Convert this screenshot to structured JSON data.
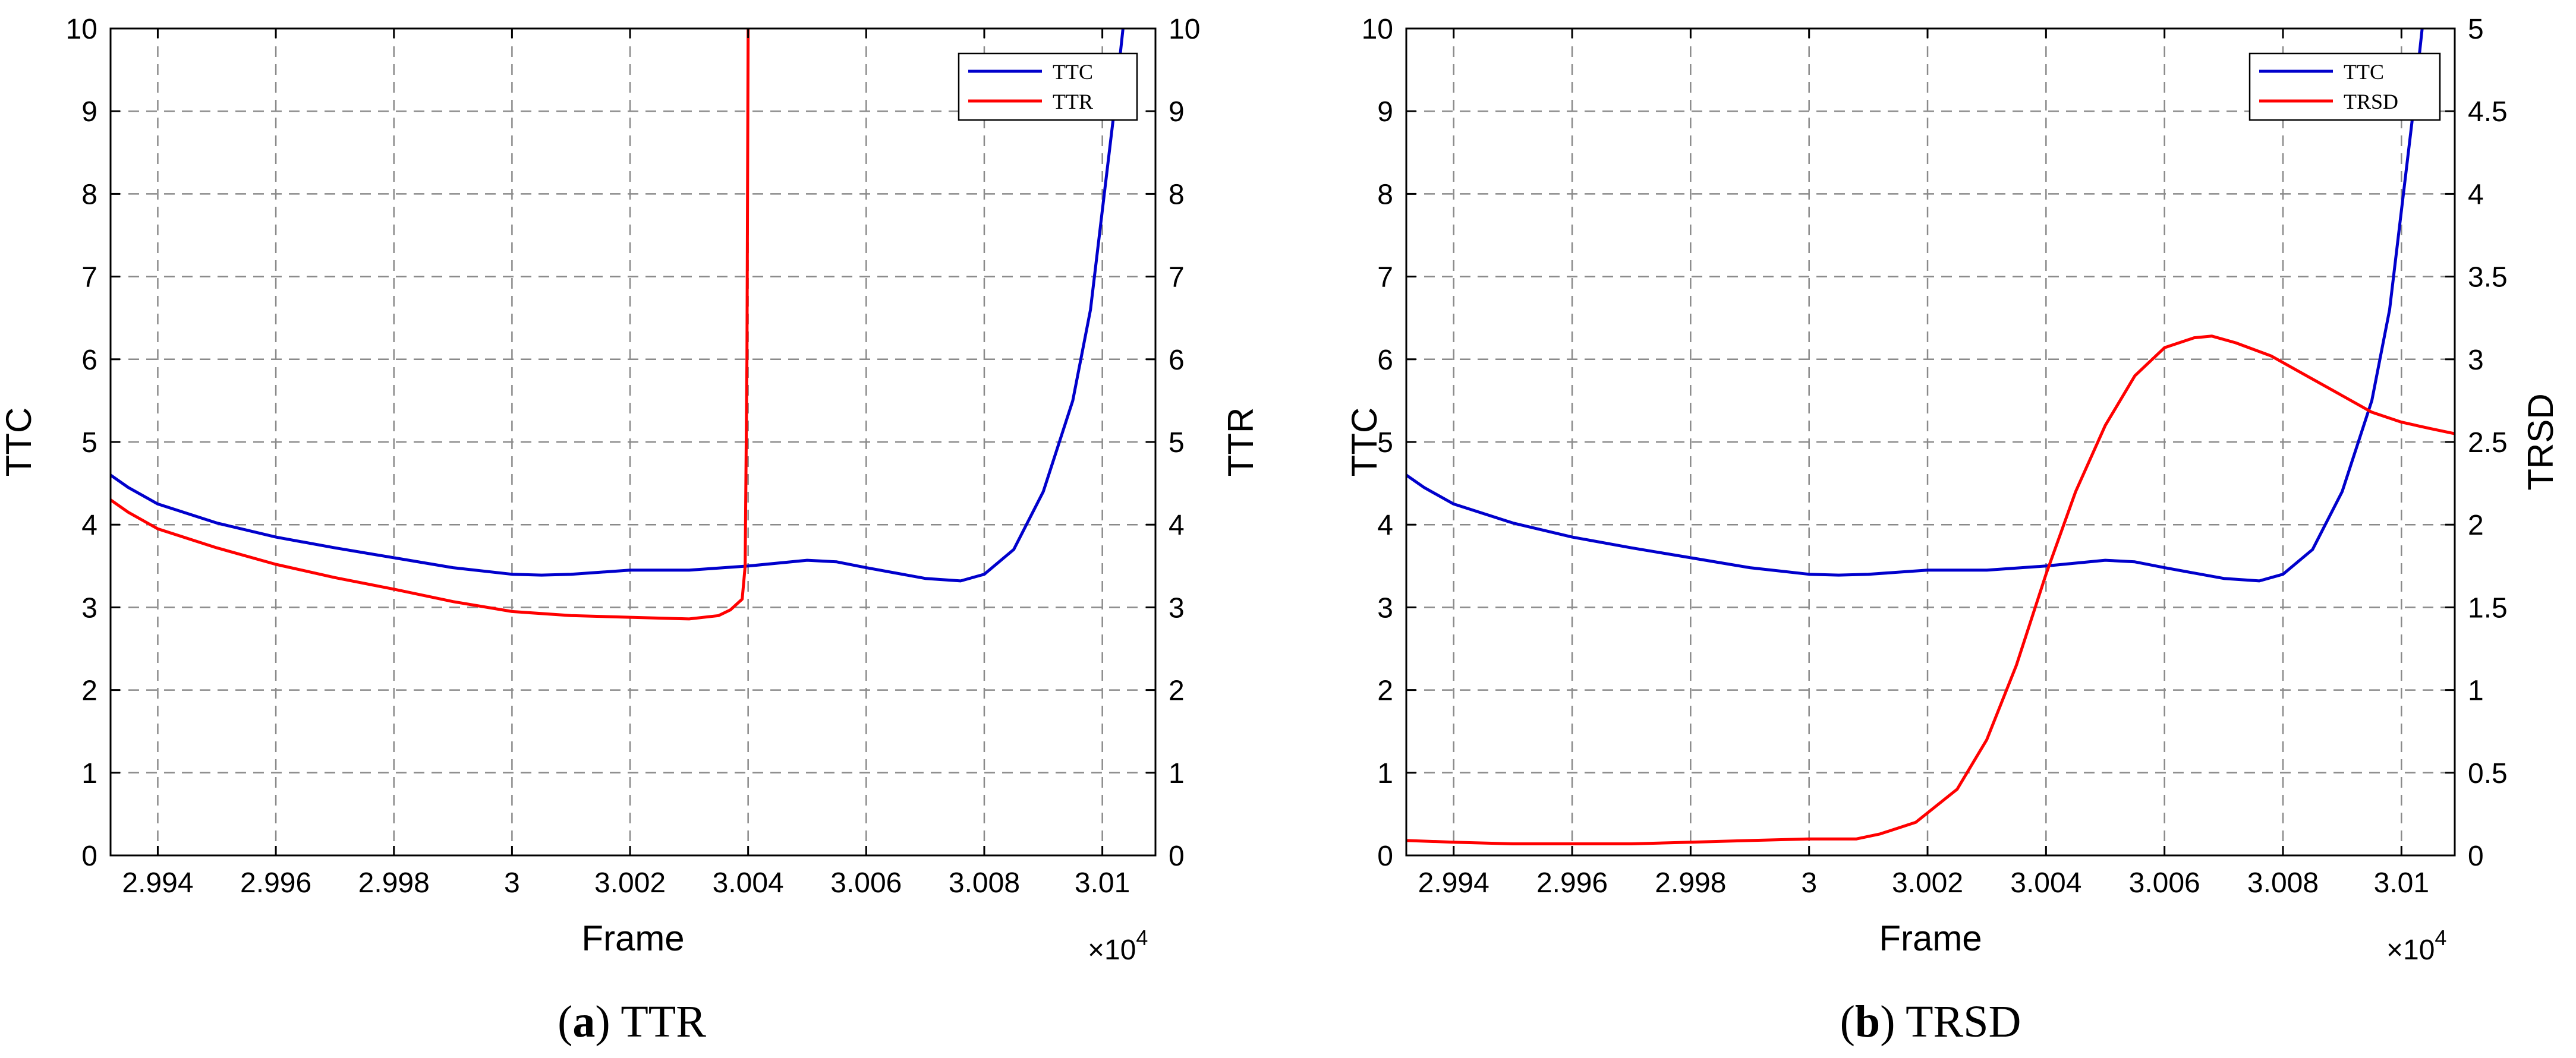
{
  "chart_data": [
    {
      "id": "a",
      "type": "line",
      "caption": {
        "letter": "a",
        "text": "TTR"
      },
      "xlabel": "Frame",
      "x_exponent_label": "×10",
      "x_exponent_power": "4",
      "xlim": [
        2.9932,
        3.0109
      ],
      "xticks": [
        2.994,
        2.996,
        2.998,
        3.0,
        3.002,
        3.004,
        3.006,
        3.008,
        3.01
      ],
      "xtick_labels": [
        "2.994",
        "2.996",
        "2.998",
        "3",
        "3.002",
        "3.004",
        "3.006",
        "3.008",
        "3.01"
      ],
      "ylabel_left": "TTC",
      "ylim_left": [
        0,
        10
      ],
      "yticks_left": [
        0,
        1,
        2,
        3,
        4,
        5,
        6,
        7,
        8,
        9,
        10
      ],
      "ylabel_right": "TTR",
      "ylim_right": [
        0,
        10
      ],
      "yticks_right": [
        0,
        1,
        2,
        3,
        4,
        5,
        6,
        7,
        8,
        9,
        10
      ],
      "grid": true,
      "legend_position": "top-right",
      "series": [
        {
          "name": "TTC",
          "axis": "left",
          "color": "#0000cc",
          "x": [
            2.9932,
            2.9935,
            2.994,
            2.995,
            2.996,
            2.997,
            2.998,
            2.999,
            3.0,
            3.0005,
            3.001,
            3.002,
            3.003,
            3.004,
            3.005,
            3.0055,
            3.006,
            3.007,
            3.0076,
            3.008,
            3.0085,
            3.009,
            3.0095,
            3.0098,
            3.01,
            3.0102,
            3.01035
          ],
          "values": [
            4.6,
            4.45,
            4.25,
            4.02,
            3.85,
            3.72,
            3.6,
            3.48,
            3.4,
            3.39,
            3.4,
            3.45,
            3.45,
            3.5,
            3.57,
            3.55,
            3.48,
            3.35,
            3.32,
            3.4,
            3.7,
            4.4,
            5.5,
            6.6,
            7.8,
            9.0,
            10.0
          ]
        },
        {
          "name": "TTR",
          "axis": "right",
          "color": "#ff0000",
          "x": [
            2.9932,
            2.9935,
            2.994,
            2.995,
            2.996,
            2.997,
            2.998,
            2.999,
            3.0,
            3.001,
            3.002,
            3.003,
            3.0035,
            3.0037,
            3.0039,
            3.00395,
            3.00398,
            3.004
          ],
          "values": [
            4.3,
            4.15,
            3.95,
            3.72,
            3.52,
            3.36,
            3.22,
            3.07,
            2.95,
            2.9,
            2.88,
            2.86,
            2.9,
            2.97,
            3.1,
            3.5,
            6.0,
            10.0
          ]
        }
      ]
    },
    {
      "id": "b",
      "type": "line",
      "caption": {
        "letter": "b",
        "text": "TRSD"
      },
      "xlabel": "Frame",
      "x_exponent_label": "×10",
      "x_exponent_power": "4",
      "xlim": [
        2.9932,
        3.0109
      ],
      "xticks": [
        2.994,
        2.996,
        2.998,
        3.0,
        3.002,
        3.004,
        3.006,
        3.008,
        3.01
      ],
      "xtick_labels": [
        "2.994",
        "2.996",
        "2.998",
        "3",
        "3.002",
        "3.004",
        "3.006",
        "3.008",
        "3.01"
      ],
      "ylabel_left": "TTC",
      "ylim_left": [
        0,
        10
      ],
      "yticks_left": [
        0,
        1,
        2,
        3,
        4,
        5,
        6,
        7,
        8,
        9,
        10
      ],
      "ylabel_right": "TRSD",
      "ylim_right": [
        0,
        5
      ],
      "yticks_right": [
        0,
        0.5,
        1,
        1.5,
        2,
        2.5,
        3,
        3.5,
        4,
        4.5,
        5
      ],
      "ytick_labels_right": [
        "0",
        "0.5",
        "1",
        "1.5",
        "2",
        "2.5",
        "3",
        "3.5",
        "4",
        "4.5",
        "5"
      ],
      "grid": true,
      "legend_position": "top-right",
      "series": [
        {
          "name": "TTC",
          "axis": "left",
          "color": "#0000cc",
          "x": [
            2.9932,
            2.9935,
            2.994,
            2.995,
            2.996,
            2.997,
            2.998,
            2.999,
            3.0,
            3.0005,
            3.001,
            3.002,
            3.003,
            3.004,
            3.005,
            3.0055,
            3.006,
            3.007,
            3.0076,
            3.008,
            3.0085,
            3.009,
            3.0095,
            3.0098,
            3.01,
            3.0102,
            3.01035
          ],
          "values": [
            4.6,
            4.45,
            4.25,
            4.02,
            3.85,
            3.72,
            3.6,
            3.48,
            3.4,
            3.39,
            3.4,
            3.45,
            3.45,
            3.5,
            3.57,
            3.55,
            3.48,
            3.35,
            3.32,
            3.4,
            3.7,
            4.4,
            5.5,
            6.6,
            7.8,
            9.0,
            10.0
          ]
        },
        {
          "name": "TRSD",
          "axis": "right",
          "color": "#ff0000",
          "x": [
            2.9932,
            2.994,
            2.995,
            2.996,
            2.997,
            2.998,
            2.999,
            3.0,
            3.0008,
            3.0012,
            3.0018,
            3.0025,
            3.003,
            3.0035,
            3.004,
            3.0045,
            3.005,
            3.0055,
            3.006,
            3.0065,
            3.0068,
            3.0072,
            3.0078,
            3.0085,
            3.009,
            3.0095,
            3.01,
            3.0105,
            3.0109
          ],
          "values": [
            0.09,
            0.08,
            0.07,
            0.07,
            0.07,
            0.08,
            0.09,
            0.1,
            0.1,
            0.13,
            0.2,
            0.4,
            0.7,
            1.15,
            1.7,
            2.2,
            2.6,
            2.9,
            3.07,
            3.13,
            3.14,
            3.1,
            3.02,
            2.88,
            2.78,
            2.68,
            2.62,
            2.58,
            2.55
          ]
        }
      ]
    }
  ]
}
